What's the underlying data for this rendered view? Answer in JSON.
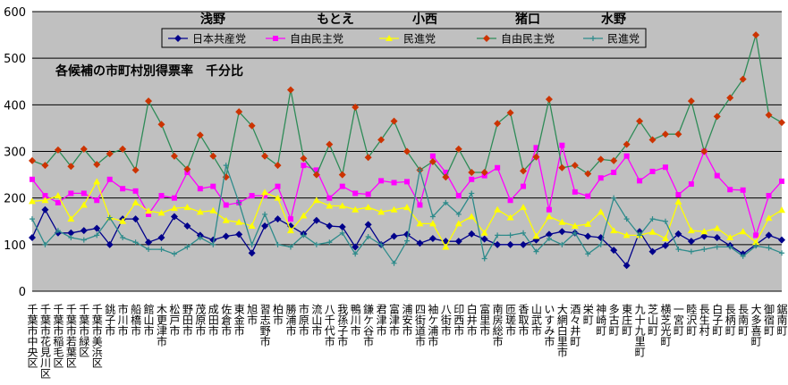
{
  "chart_data": {
    "type": "line",
    "title": "各候補の市町村別得票率　千分比",
    "ylim": [
      0,
      600
    ],
    "yticks": [
      0,
      100,
      200,
      300,
      400,
      500,
      600
    ],
    "grid": true,
    "legend_position": "top",
    "candidates": [
      "浅野",
      "もとえ",
      "小西",
      "猪口",
      "水野"
    ],
    "categories": [
      "千葉市中央区",
      "千葉市花見川区",
      "千葉市稲毛区",
      "千葉市若葉区",
      "千葉市緑区",
      "千葉市美浜区",
      "銚子市",
      "市川市",
      "船橋市",
      "館山市",
      "木更津市",
      "松戸市",
      "野田市",
      "茂原市",
      "成田市",
      "佐倉市",
      "東金市",
      "旭市",
      "習志野市",
      "柏市",
      "勝浦市",
      "市原市",
      "流山市",
      "八千代市",
      "我孫子市",
      "鴨川市",
      "鎌ケ谷市",
      "君津市",
      "富津市",
      "浦安市",
      "四街道市",
      "袖ケ浦市",
      "八街市",
      "印西市",
      "白井市",
      "富里市",
      "南房総市",
      "匝瑳市",
      "香取市",
      "山武市",
      "いすみ市",
      "大網白里市",
      "酒々井町",
      "栄町",
      "神崎町",
      "多古町",
      "東庄町",
      "九十九里町",
      "芝山町",
      "横芝光町",
      "一宮町",
      "睦沢町",
      "長生村",
      "白子町",
      "長柄町",
      "長南町",
      "大多喜町",
      "御宿町",
      "鋸南町"
    ],
    "series": [
      {
        "name": "日本共産党",
        "color": "#00008b",
        "marker": "diamond",
        "values": [
          115,
          175,
          125,
          125,
          130,
          135,
          100,
          155,
          155,
          105,
          115,
          160,
          140,
          120,
          110,
          118,
          122,
          82,
          140,
          155,
          140,
          123,
          152,
          140,
          138,
          95,
          143,
          100,
          118,
          122,
          103,
          113,
          107,
          107,
          123,
          112,
          100,
          100,
          100,
          110,
          122,
          128,
          125,
          118,
          115,
          88,
          55,
          128,
          85,
          98,
          123,
          107,
          118,
          115,
          98,
          80,
          100,
          120,
          110
        ]
      },
      {
        "name": "自由民主党",
        "color": "#ff00ff",
        "marker": "square",
        "values": [
          240,
          205,
          190,
          210,
          210,
          195,
          240,
          220,
          215,
          165,
          205,
          200,
          255,
          220,
          225,
          185,
          190,
          205,
          205,
          225,
          155,
          270,
          260,
          200,
          225,
          210,
          208,
          237,
          233,
          235,
          185,
          290,
          255,
          205,
          240,
          248,
          265,
          195,
          225,
          308,
          175,
          313,
          213,
          204,
          243,
          255,
          290,
          237,
          257,
          266,
          207,
          230,
          300,
          248,
          218,
          217,
          120,
          205,
          236
        ]
      },
      {
        "name": "民進党",
        "color": "#ffff00",
        "marker": "triangle",
        "values": [
          193,
          195,
          205,
          155,
          185,
          235,
          158,
          150,
          190,
          172,
          168,
          178,
          180,
          170,
          173,
          152,
          148,
          140,
          212,
          200,
          130,
          162,
          195,
          183,
          183,
          175,
          180,
          170,
          175,
          180,
          145,
          145,
          95,
          145,
          160,
          125,
          175,
          158,
          180,
          118,
          160,
          148,
          140,
          144,
          170,
          130,
          120,
          120,
          127,
          113,
          192,
          130,
          128,
          135,
          115,
          128,
          105,
          157,
          174
        ]
      },
      {
        "name": "自由民主党",
        "color": "#2e8b57",
        "markerColor": "#cc3300",
        "marker": "diamond",
        "values": [
          280,
          270,
          303,
          268,
          305,
          272,
          295,
          305,
          260,
          408,
          358,
          290,
          262,
          335,
          290,
          245,
          385,
          355,
          290,
          270,
          432,
          285,
          250,
          315,
          250,
          395,
          287,
          325,
          365,
          300,
          260,
          278,
          245,
          305,
          255,
          255,
          360,
          383,
          258,
          288,
          412,
          265,
          270,
          252,
          283,
          280,
          315,
          365,
          325,
          337,
          337,
          408,
          300,
          375,
          415,
          455,
          550,
          378,
          362
        ]
      },
      {
        "name": "民進党",
        "color": "#2e8b8b",
        "marker": "plus",
        "values": [
          155,
          100,
          130,
          115,
          110,
          120,
          158,
          115,
          105,
          90,
          90,
          80,
          95,
          115,
          100,
          270,
          190,
          100,
          165,
          100,
          95,
          120,
          100,
          105,
          125,
          80,
          117,
          100,
          60,
          108,
          260,
          160,
          190,
          165,
          210,
          70,
          120,
          120,
          125,
          85,
          113,
          100,
          125,
          80,
          100,
          200,
          155,
          120,
          155,
          150,
          90,
          85,
          90,
          95,
          95,
          75,
          97,
          93,
          82
        ]
      }
    ]
  }
}
